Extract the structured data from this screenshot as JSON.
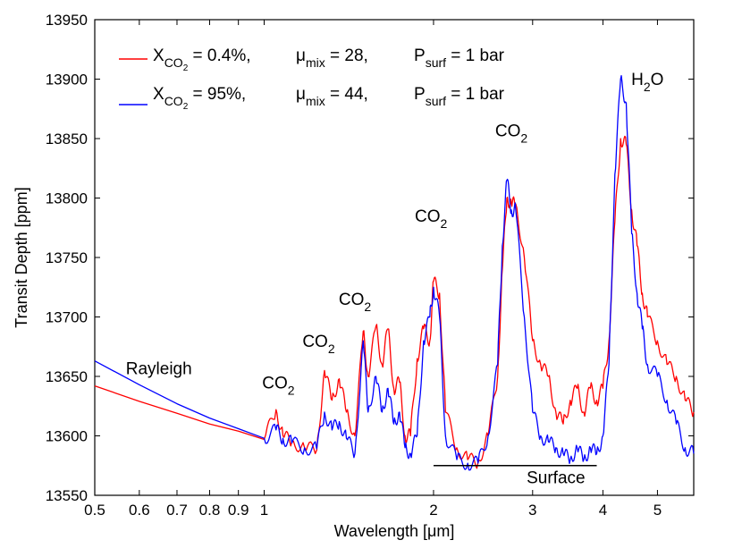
{
  "chart_data": {
    "type": "line",
    "title": "",
    "xlabel": "Wavelength [μm]",
    "ylabel": "Transit Depth [ppm]",
    "xscale": "log",
    "xlim": [
      0.5,
      5.8
    ],
    "ylim": [
      13550,
      13950
    ],
    "x_ticks": [
      0.5,
      0.6,
      0.7,
      0.8,
      0.9,
      1,
      2,
      3,
      4,
      5
    ],
    "x_tick_labels": [
      "0.5",
      "0.6",
      "0.7",
      "0.8",
      "0.9",
      "1",
      "2",
      "3",
      "4",
      "5"
    ],
    "y_ticks": [
      13550,
      13600,
      13650,
      13700,
      13750,
      13800,
      13850,
      13900,
      13950
    ],
    "y_tick_labels": [
      "13550",
      "13600",
      "13650",
      "13700",
      "13750",
      "13800",
      "13850",
      "13900",
      "13950"
    ],
    "series": [
      {
        "name": "X_CO2 = 0.4%, μ_mix = 28, P_surf = 1 bar",
        "color": "#ff0000",
        "legend": {
          "x_main": "X",
          "x_sub": "CO",
          "x_subsub": "2",
          "x_val": " = 0.4%,",
          "mu_main": "μ",
          "mu_sub": "mix",
          "mu_val": " = 28,",
          "p_main": "P",
          "p_sub": "surf",
          "p_val": " = 1 bar"
        },
        "x": [
          0.5,
          0.6,
          0.7,
          0.8,
          0.9,
          1.0,
          1.05,
          1.08,
          1.12,
          1.18,
          1.24,
          1.28,
          1.32,
          1.36,
          1.4,
          1.45,
          1.5,
          1.53,
          1.58,
          1.62,
          1.66,
          1.7,
          1.74,
          1.78,
          1.82,
          1.87,
          1.92,
          1.97,
          2.0,
          2.05,
          2.1,
          2.2,
          2.3,
          2.4,
          2.5,
          2.6,
          2.65,
          2.7,
          2.75,
          2.8,
          2.9,
          3.0,
          3.1,
          3.2,
          3.3,
          3.4,
          3.5,
          3.6,
          3.7,
          3.8,
          3.9,
          4.0,
          4.1,
          4.2,
          4.3,
          4.4,
          4.5,
          4.6,
          4.7,
          4.8,
          5.0,
          5.2,
          5.4,
          5.6,
          5.8
        ],
        "y": [
          13642,
          13629,
          13619,
          13610,
          13604,
          13597,
          13622,
          13600,
          13595,
          13590,
          13588,
          13655,
          13630,
          13648,
          13620,
          13600,
          13688,
          13650,
          13692,
          13660,
          13690,
          13640,
          13645,
          13600,
          13600,
          13665,
          13690,
          13680,
          13730,
          13720,
          13620,
          13590,
          13580,
          13578,
          13600,
          13650,
          13740,
          13800,
          13795,
          13795,
          13750,
          13680,
          13660,
          13650,
          13620,
          13610,
          13630,
          13640,
          13620,
          13640,
          13630,
          13640,
          13680,
          13780,
          13850,
          13845,
          13790,
          13760,
          13720,
          13700,
          13680,
          13660,
          13650,
          13630,
          13620
        ]
      },
      {
        "name": "X_CO2 = 95%, μ_mix = 44, P_surf = 1 bar",
        "color": "#0000ff",
        "legend": {
          "x_main": "X",
          "x_sub": "CO",
          "x_subsub": "2",
          "x_val": " = 95%,",
          "mu_main": "μ",
          "mu_sub": "mix",
          "mu_val": " = 44,",
          "p_main": "P",
          "p_sub": "surf",
          "p_val": " = 1 bar"
        },
        "x": [
          0.5,
          0.6,
          0.7,
          0.8,
          0.9,
          1.0,
          1.05,
          1.08,
          1.12,
          1.18,
          1.24,
          1.28,
          1.32,
          1.36,
          1.4,
          1.45,
          1.5,
          1.53,
          1.58,
          1.62,
          1.66,
          1.7,
          1.74,
          1.78,
          1.82,
          1.87,
          1.92,
          1.97,
          2.0,
          2.05,
          2.1,
          2.2,
          2.3,
          2.4,
          2.5,
          2.6,
          2.65,
          2.7,
          2.75,
          2.8,
          2.9,
          3.0,
          3.1,
          3.2,
          3.3,
          3.4,
          3.5,
          3.6,
          3.7,
          3.8,
          3.9,
          4.0,
          4.1,
          4.2,
          4.3,
          4.4,
          4.5,
          4.6,
          4.7,
          4.8,
          5.0,
          5.2,
          5.4,
          5.6,
          5.8
        ],
        "y": [
          13663,
          13643,
          13627,
          13615,
          13606,
          13598,
          13605,
          13598,
          13594,
          13590,
          13589,
          13620,
          13605,
          13612,
          13598,
          13585,
          13680,
          13620,
          13650,
          13620,
          13640,
          13610,
          13620,
          13590,
          13585,
          13600,
          13680,
          13700,
          13725,
          13700,
          13600,
          13580,
          13577,
          13577,
          13600,
          13660,
          13760,
          13815,
          13790,
          13790,
          13700,
          13620,
          13600,
          13595,
          13590,
          13585,
          13580,
          13590,
          13580,
          13590,
          13585,
          13600,
          13660,
          13820,
          13900,
          13880,
          13770,
          13720,
          13690,
          13660,
          13650,
          13630,
          13610,
          13590,
          13585
        ]
      }
    ],
    "annotations": [
      {
        "text": "Rayleigh",
        "x": 0.65,
        "y": 13652
      },
      {
        "main": "CO",
        "sub": "2",
        "x": 1.06,
        "y": 13640
      },
      {
        "main": "CO",
        "sub": "2",
        "x": 1.25,
        "y": 13675
      },
      {
        "main": "CO",
        "sub": "2",
        "x": 1.45,
        "y": 13710
      },
      {
        "main": "CO",
        "sub": "2",
        "x": 1.98,
        "y": 13780
      },
      {
        "main": "CO",
        "sub": "2",
        "x": 2.75,
        "y": 13852
      },
      {
        "main": "H",
        "sub": "2",
        "after": "O",
        "x": 4.8,
        "y": 13895
      },
      {
        "text": "Surface",
        "x": 3.3,
        "y": 13560
      }
    ],
    "surface_bracket": {
      "x_start": 2.0,
      "x_end": 3.9,
      "y": 13575
    }
  }
}
